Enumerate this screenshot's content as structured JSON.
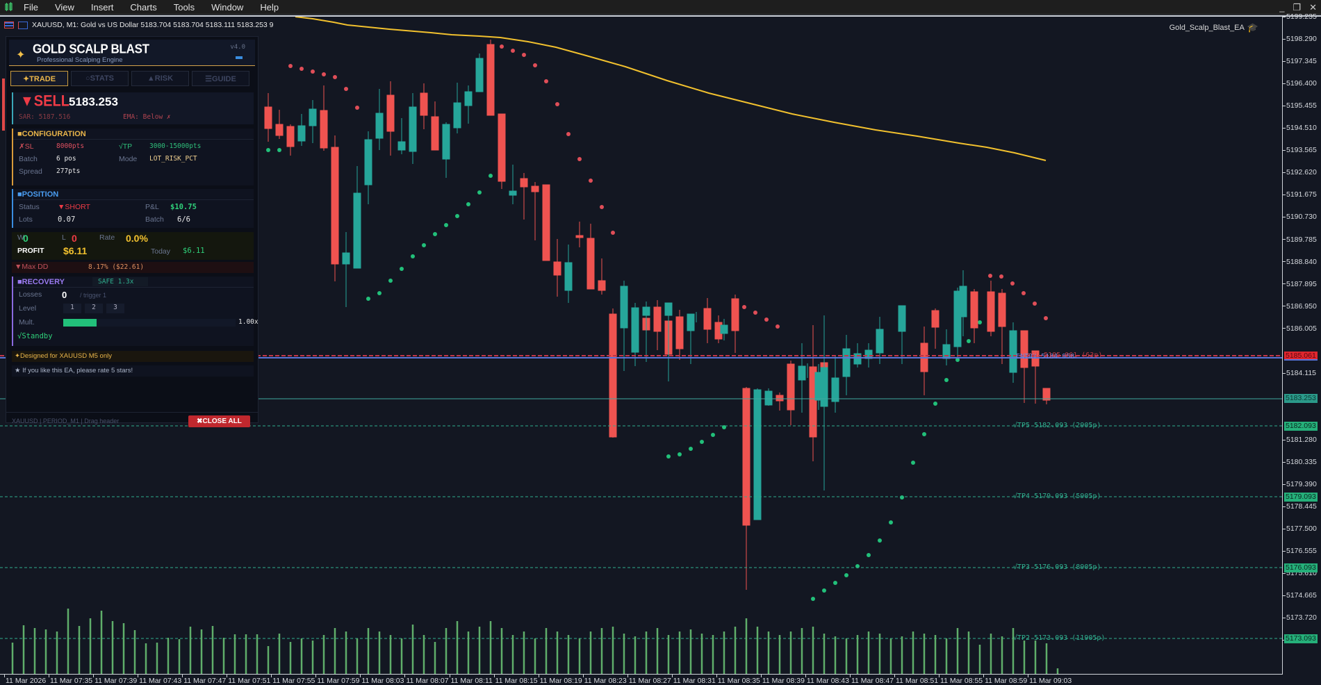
{
  "menubar": {
    "items": [
      "File",
      "View",
      "Insert",
      "Charts",
      "Tools",
      "Window",
      "Help"
    ],
    "window_controls": [
      "minimize",
      "restore",
      "close"
    ]
  },
  "chart": {
    "title": "XAUUSD, M1:  Gold vs US Dollar  5183.704 5183.704 5183.111 5183.253  9",
    "ea_name": "Gold_Scalp_Blast_EA",
    "colors": {
      "background": "#131722",
      "bull": "#26a69a",
      "bear": "#ef5350",
      "ema": "#f2c12e",
      "sar_up": "#22c07a",
      "sar_down": "#e04e58",
      "volume": "#5fae6a"
    },
    "price_axis": [
      "5199.235",
      "5198.290",
      "5197.345",
      "5196.400",
      "5195.455",
      "5194.510",
      "5193.565",
      "5192.620",
      "5191.675",
      "5190.730",
      "5189.785",
      "5188.840",
      "5187.895",
      "5186.950",
      "5186.005",
      "5184.115",
      "5181.280",
      "5180.335",
      "5179.390",
      "5178.445",
      "5177.500",
      "5176.555",
      "5175.610",
      "5174.665",
      "5173.720",
      "5172.775"
    ],
    "price_tags": {
      "sl_line": "5185.061",
      "bid": "5183.253",
      "tp5": "5182.093",
      "tp4": "5179.093",
      "tp3": "5176.093",
      "tp2": "5173.093"
    },
    "line_labels": {
      "entry": "ENTRY 5184.958",
      "sl": "✗SL 5185.061 (63p)",
      "tp5": "√TP5 5182.093 (2905p)",
      "tp4": "√TP4 5179.093 (5905p)",
      "tp3": "√TP3 5176.093 (8905p)",
      "tp2": "√TP2 5173.093 (11905p)"
    },
    "time_axis": [
      "11 Mar 2026",
      "11 Mar 07:35",
      "11 Mar 07:39",
      "11 Mar 07:43",
      "11 Mar 07:47",
      "11 Mar 07:51",
      "11 Mar 07:55",
      "11 Mar 07:59",
      "11 Mar 08:03",
      "11 Mar 08:07",
      "11 Mar 08:11",
      "11 Mar 08:15",
      "11 Mar 08:19",
      "11 Mar 08:23",
      "11 Mar 08:27",
      "11 Mar 08:31",
      "11 Mar 08:35",
      "11 Mar 08:39",
      "11 Mar 08:43",
      "11 Mar 08:47",
      "11 Mar 08:51",
      "11 Mar 08:55",
      "11 Mar 08:59",
      "11 Mar 09:03"
    ]
  },
  "panel": {
    "title": "GOLD SCALP BLAST",
    "subtitle": "Professional Scalping Engine",
    "version": "v4.0",
    "tabs": [
      {
        "label": "✦TRADE",
        "active": true
      },
      {
        "label": "○STATS",
        "active": false
      },
      {
        "label": "▲RISK",
        "active": false
      },
      {
        "label": "☰GUIDE",
        "active": false
      }
    ],
    "signal": {
      "direction": "▼SELL",
      "price": "5183.253",
      "sar": "SAR: 5187.516",
      "ema": "EMA: Below ✗"
    },
    "configuration": {
      "title": "■CONFIGURATION",
      "sl_label": "✗SL",
      "sl_value": "8000pts",
      "tp_label": "√TP",
      "tp_value": "3000-15000pts",
      "batch_label": "Batch",
      "batch_value": "6 pos",
      "mode_label": "Mode",
      "mode_value": "LOT_RISK_PCT",
      "spread_label": "Spread",
      "spread_value": "277pts"
    },
    "position": {
      "title": "■POSITION",
      "status_label": "Status",
      "status_value": "▼SHORT",
      "pnl_label": "P&L",
      "pnl_value": "$10.75",
      "lots_label": "Lots",
      "lots_value": "0.07",
      "batch_label": "Batch",
      "batch_value": "6/6"
    },
    "stats": {
      "w_label": "W",
      "w_value": "0",
      "l_label": "L",
      "l_value": "0",
      "rate_label": "Rate",
      "rate_value": "0.0%",
      "profit_label": "PROFIT",
      "profit_value": "$6.11",
      "today_label": "Today",
      "today_value": "$6.11"
    },
    "maxdd": {
      "label": "▼Max DD",
      "value": "8.17% ($22.61)"
    },
    "recovery": {
      "title": "■RECOVERY",
      "badge": "SAFE 1.3x",
      "losses_label": "Losses",
      "losses_value": "0",
      "trigger": "/ trigger 1",
      "level_label": "Level",
      "levels": [
        "1",
        "2",
        "3"
      ],
      "mult_label": "Mult.",
      "mult_value": "1.00x",
      "mult_progress": 33,
      "status": "√Standby"
    },
    "notice": "✦Designed for XAUUSD M5 only",
    "rate_note": "★ If you like this EA, please rate 5 stars!",
    "footer": "XAUUSD | PERIOD_M1 | Drag header",
    "close_all": "✖CLOSE ALL"
  }
}
